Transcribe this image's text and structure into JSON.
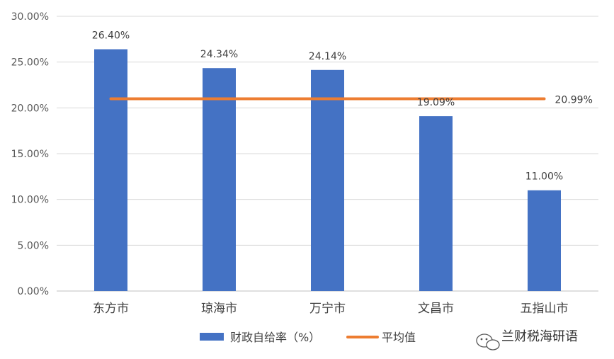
{
  "chart_data": {
    "type": "bar",
    "categories": [
      "东方市",
      "琼海市",
      "万宁市",
      "文昌市",
      "五指山市"
    ],
    "series": [
      {
        "name": "财政自给率（%）",
        "values": [
          26.4,
          24.34,
          24.14,
          19.09,
          11.0
        ],
        "data_labels": [
          "26.40%",
          "24.34%",
          "24.14%",
          "19.09%",
          "11.00%"
        ],
        "color": "#4472C4"
      },
      {
        "name": "平均值",
        "kind": "line",
        "value": 20.99,
        "data_label": "20.99%",
        "color": "#ED7D31"
      }
    ],
    "yticks": [
      0,
      5,
      10,
      15,
      20,
      25,
      30
    ],
    "ytick_labels": [
      "0.00%",
      "5.00%",
      "10.00%",
      "15.00%",
      "20.00%",
      "25.00%",
      "30.00%"
    ],
    "ylim": [
      0,
      30
    ],
    "grid": true,
    "legend_position": "bottom"
  },
  "watermark": {
    "text": "兰财税海研语",
    "icon": "wechat-icon"
  }
}
